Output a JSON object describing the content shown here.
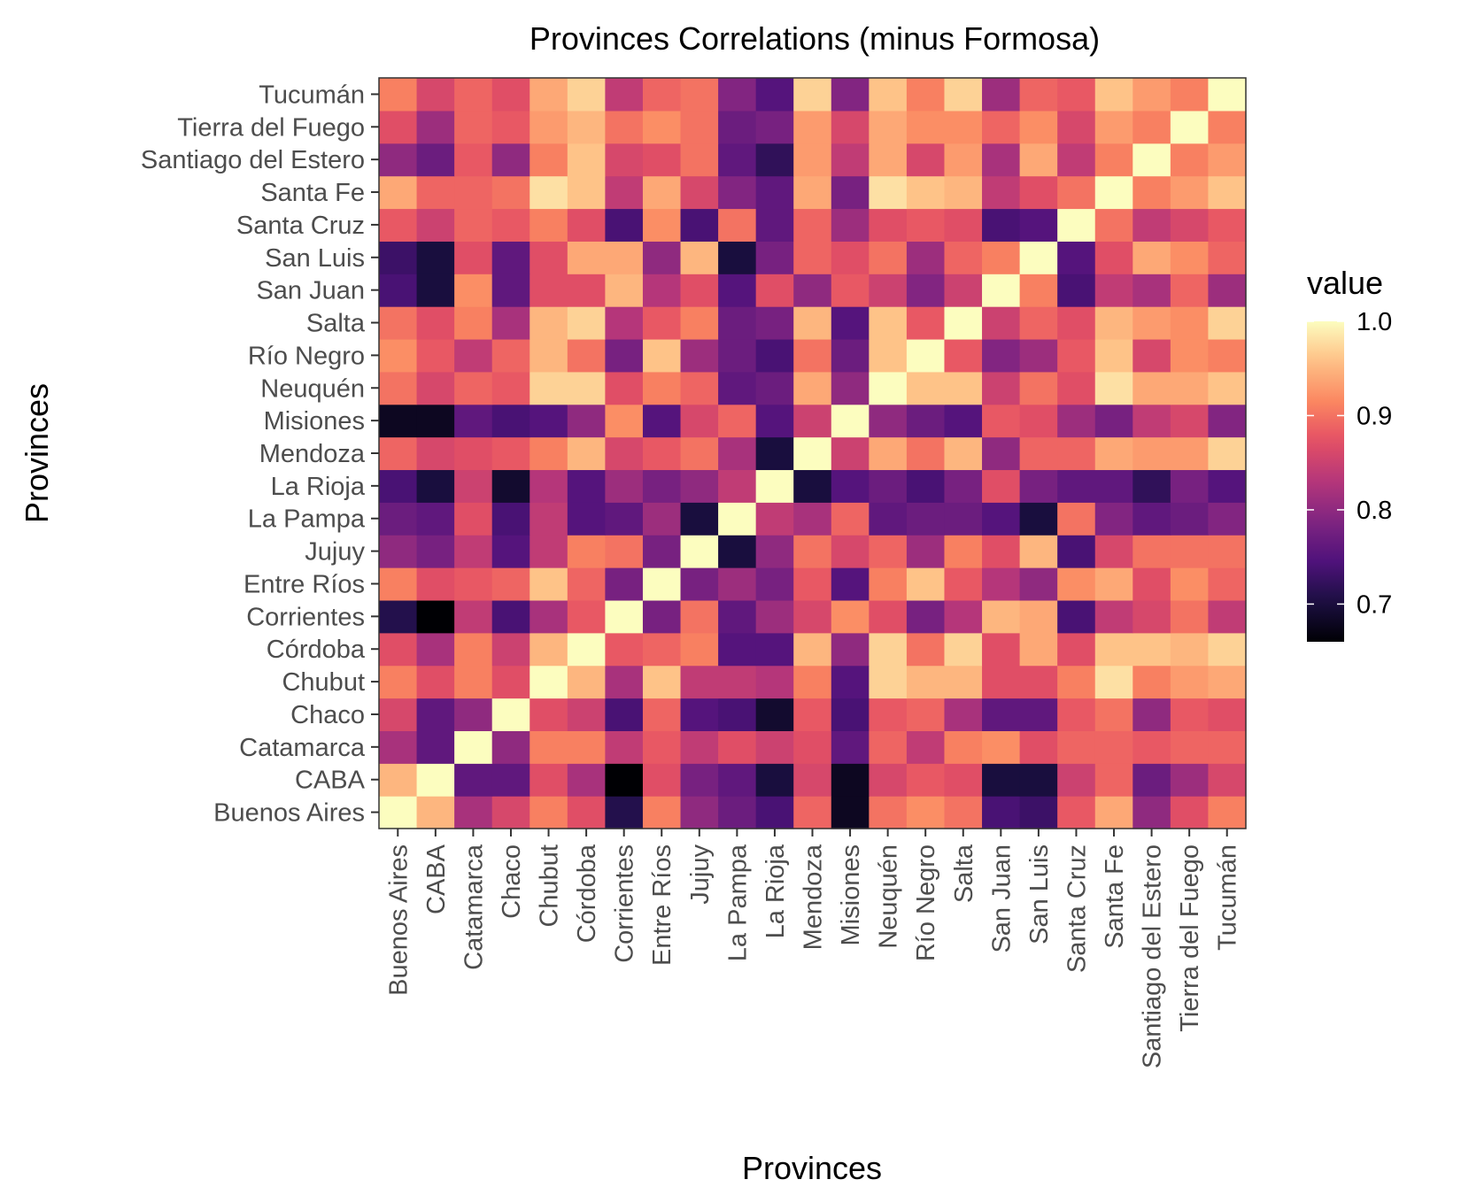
{
  "chart_data": {
    "type": "heatmap",
    "title": "Provinces Correlations (minus Formosa)",
    "xlabel": "Provinces",
    "ylabel": "Provinces",
    "categories": [
      "Buenos Aires",
      "CABA",
      "Catamarca",
      "Chaco",
      "Chubut",
      "Córdoba",
      "Corrientes",
      "Entre Ríos",
      "Jujuy",
      "La Pampa",
      "La Rioja",
      "Mendoza",
      "Misiones",
      "Neuquén",
      "Río Negro",
      "Salta",
      "San Juan",
      "San Luis",
      "Santa Cruz",
      "Santa Fe",
      "Santiago del Estero",
      "Tierra del Fuego",
      "Tucumán"
    ],
    "values": [
      [
        1.0,
        0.95,
        0.82,
        0.86,
        0.91,
        0.87,
        0.71,
        0.91,
        0.8,
        0.77,
        0.74,
        0.89,
        0.68,
        0.9,
        0.92,
        0.9,
        0.74,
        0.73,
        0.88,
        0.94,
        0.8,
        0.87,
        0.91
      ],
      [
        0.95,
        1.0,
        0.76,
        0.76,
        0.87,
        0.82,
        0.66,
        0.87,
        0.78,
        0.76,
        0.7,
        0.86,
        0.68,
        0.86,
        0.88,
        0.87,
        0.7,
        0.7,
        0.85,
        0.89,
        0.77,
        0.81,
        0.86
      ],
      [
        0.82,
        0.76,
        1.0,
        0.8,
        0.91,
        0.91,
        0.84,
        0.88,
        0.84,
        0.87,
        0.85,
        0.87,
        0.76,
        0.89,
        0.84,
        0.91,
        0.92,
        0.87,
        0.89,
        0.89,
        0.88,
        0.89,
        0.89
      ],
      [
        0.86,
        0.76,
        0.8,
        1.0,
        0.87,
        0.85,
        0.74,
        0.89,
        0.75,
        0.74,
        0.69,
        0.88,
        0.74,
        0.88,
        0.89,
        0.82,
        0.76,
        0.76,
        0.88,
        0.9,
        0.8,
        0.88,
        0.87
      ],
      [
        0.91,
        0.87,
        0.91,
        0.87,
        1.0,
        0.95,
        0.82,
        0.96,
        0.84,
        0.84,
        0.83,
        0.91,
        0.75,
        0.97,
        0.95,
        0.95,
        0.87,
        0.87,
        0.91,
        0.98,
        0.91,
        0.93,
        0.94
      ],
      [
        0.87,
        0.82,
        0.91,
        0.85,
        0.95,
        1.0,
        0.88,
        0.89,
        0.91,
        0.75,
        0.75,
        0.95,
        0.8,
        0.97,
        0.9,
        0.97,
        0.87,
        0.94,
        0.87,
        0.96,
        0.96,
        0.95,
        0.97
      ],
      [
        0.71,
        0.66,
        0.84,
        0.74,
        0.82,
        0.88,
        1.0,
        0.78,
        0.9,
        0.76,
        0.81,
        0.86,
        0.92,
        0.87,
        0.78,
        0.83,
        0.95,
        0.94,
        0.74,
        0.84,
        0.86,
        0.9,
        0.84
      ],
      [
        0.91,
        0.87,
        0.88,
        0.89,
        0.96,
        0.89,
        0.78,
        1.0,
        0.78,
        0.81,
        0.78,
        0.88,
        0.75,
        0.91,
        0.96,
        0.88,
        0.83,
        0.8,
        0.92,
        0.94,
        0.87,
        0.92,
        0.89
      ],
      [
        0.8,
        0.78,
        0.84,
        0.75,
        0.84,
        0.91,
        0.9,
        0.78,
        1.0,
        0.7,
        0.8,
        0.9,
        0.86,
        0.89,
        0.81,
        0.91,
        0.87,
        0.95,
        0.74,
        0.86,
        0.9,
        0.9,
        0.9
      ],
      [
        0.77,
        0.76,
        0.87,
        0.74,
        0.84,
        0.75,
        0.76,
        0.81,
        0.7,
        1.0,
        0.84,
        0.82,
        0.89,
        0.76,
        0.77,
        0.77,
        0.75,
        0.7,
        0.9,
        0.79,
        0.76,
        0.77,
        0.79
      ],
      [
        0.74,
        0.7,
        0.85,
        0.69,
        0.83,
        0.75,
        0.81,
        0.78,
        0.8,
        0.84,
        1.0,
        0.7,
        0.75,
        0.77,
        0.74,
        0.78,
        0.87,
        0.78,
        0.76,
        0.76,
        0.72,
        0.78,
        0.75
      ],
      [
        0.89,
        0.86,
        0.87,
        0.88,
        0.91,
        0.95,
        0.86,
        0.88,
        0.9,
        0.82,
        0.7,
        1.0,
        0.85,
        0.94,
        0.9,
        0.95,
        0.8,
        0.89,
        0.89,
        0.94,
        0.93,
        0.93,
        0.97
      ],
      [
        0.68,
        0.68,
        0.76,
        0.74,
        0.75,
        0.8,
        0.92,
        0.75,
        0.86,
        0.89,
        0.75,
        0.85,
        1.0,
        0.8,
        0.77,
        0.75,
        0.88,
        0.87,
        0.81,
        0.78,
        0.84,
        0.86,
        0.79
      ],
      [
        0.9,
        0.86,
        0.89,
        0.88,
        0.97,
        0.97,
        0.87,
        0.91,
        0.89,
        0.76,
        0.77,
        0.94,
        0.8,
        1.0,
        0.96,
        0.96,
        0.85,
        0.9,
        0.87,
        0.98,
        0.94,
        0.94,
        0.96
      ],
      [
        0.92,
        0.88,
        0.84,
        0.89,
        0.95,
        0.9,
        0.78,
        0.96,
        0.81,
        0.77,
        0.74,
        0.9,
        0.77,
        0.96,
        1.0,
        0.88,
        0.79,
        0.81,
        0.88,
        0.96,
        0.86,
        0.92,
        0.91
      ],
      [
        0.9,
        0.87,
        0.91,
        0.82,
        0.95,
        0.97,
        0.83,
        0.88,
        0.91,
        0.77,
        0.78,
        0.95,
        0.75,
        0.96,
        0.88,
        1.0,
        0.85,
        0.89,
        0.87,
        0.95,
        0.93,
        0.92,
        0.97
      ],
      [
        0.74,
        0.7,
        0.92,
        0.76,
        0.87,
        0.87,
        0.95,
        0.83,
        0.87,
        0.75,
        0.87,
        0.8,
        0.88,
        0.85,
        0.79,
        0.85,
        1.0,
        0.91,
        0.74,
        0.84,
        0.82,
        0.89,
        0.81
      ],
      [
        0.73,
        0.7,
        0.87,
        0.76,
        0.87,
        0.94,
        0.94,
        0.8,
        0.95,
        0.7,
        0.78,
        0.89,
        0.87,
        0.9,
        0.81,
        0.89,
        0.91,
        1.0,
        0.75,
        0.87,
        0.94,
        0.92,
        0.89
      ],
      [
        0.88,
        0.85,
        0.89,
        0.88,
        0.91,
        0.87,
        0.74,
        0.92,
        0.74,
        0.9,
        0.76,
        0.89,
        0.81,
        0.87,
        0.88,
        0.87,
        0.74,
        0.75,
        1.0,
        0.9,
        0.84,
        0.86,
        0.88
      ],
      [
        0.94,
        0.89,
        0.89,
        0.9,
        0.98,
        0.96,
        0.84,
        0.94,
        0.86,
        0.79,
        0.76,
        0.94,
        0.78,
        0.98,
        0.96,
        0.95,
        0.84,
        0.87,
        0.9,
        1.0,
        0.91,
        0.93,
        0.96
      ],
      [
        0.8,
        0.77,
        0.88,
        0.8,
        0.91,
        0.96,
        0.86,
        0.87,
        0.9,
        0.76,
        0.72,
        0.93,
        0.84,
        0.94,
        0.86,
        0.93,
        0.82,
        0.94,
        0.84,
        0.91,
        1.0,
        0.91,
        0.93
      ],
      [
        0.87,
        0.81,
        0.89,
        0.88,
        0.93,
        0.95,
        0.9,
        0.92,
        0.9,
        0.77,
        0.78,
        0.93,
        0.86,
        0.94,
        0.92,
        0.92,
        0.89,
        0.92,
        0.86,
        0.93,
        0.91,
        1.0,
        0.91
      ],
      [
        0.91,
        0.86,
        0.89,
        0.87,
        0.94,
        0.97,
        0.84,
        0.89,
        0.9,
        0.79,
        0.75,
        0.97,
        0.79,
        0.96,
        0.91,
        0.97,
        0.81,
        0.89,
        0.88,
        0.96,
        0.93,
        0.91,
        1.0
      ]
    ],
    "color_scale": {
      "name": "magma",
      "limits": [
        0.66,
        1.0
      ],
      "ticks": [
        0.7,
        0.8,
        0.9,
        1.0
      ],
      "tick_labels": [
        "0.7",
        "0.8",
        "0.9",
        "1.0"
      ],
      "title": "value"
    },
    "grid": false,
    "legend_position": "right"
  }
}
